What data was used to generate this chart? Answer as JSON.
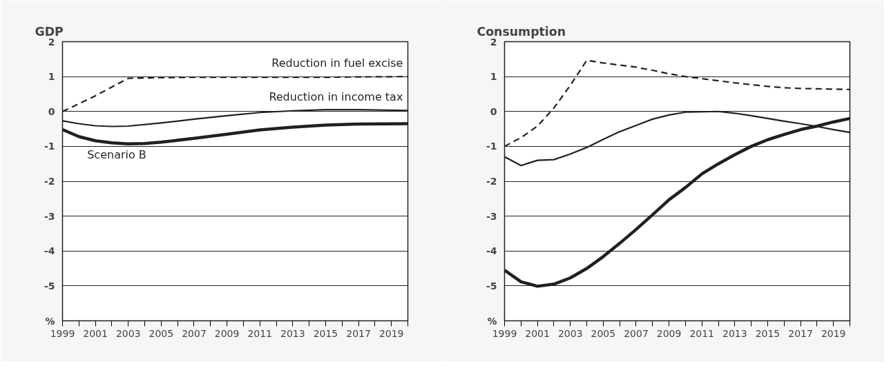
{
  "chart_data": [
    {
      "type": "line",
      "title": "GDP",
      "series": [
        {
          "name": "Reduction in fuel excise",
          "color": "#231f20",
          "line_style": "dashed",
          "x": [
            1999,
            2000,
            2001,
            2002,
            2003,
            2005,
            2007,
            2009,
            2011,
            2013,
            2015,
            2017,
            2020
          ],
          "values": [
            0,
            0.22,
            0.45,
            0.7,
            0.95,
            0.97,
            0.98,
            0.98,
            0.98,
            0.98,
            0.98,
            0.99,
            1.0
          ]
        },
        {
          "name": "Reduction in income tax",
          "color": "#231f20",
          "line_style": "solid",
          "x": [
            1999,
            2000,
            2001,
            2002,
            2003,
            2005,
            2007,
            2009,
            2011,
            2013,
            2015,
            2017,
            2020
          ],
          "values": [
            -0.27,
            -0.35,
            -0.41,
            -0.43,
            -0.42,
            -0.33,
            -0.22,
            -0.12,
            -0.03,
            0.02,
            0.05,
            0.05,
            0.03
          ]
        },
        {
          "name": "Scenario B",
          "color": "#231f20",
          "line_style": "solid",
          "x": [
            1999,
            2000,
            2001,
            2002,
            2003,
            2004,
            2005,
            2007,
            2009,
            2011,
            2013,
            2015,
            2017,
            2020
          ],
          "values": [
            -0.52,
            -0.72,
            -0.84,
            -0.9,
            -0.93,
            -0.92,
            -0.88,
            -0.77,
            -0.65,
            -0.53,
            -0.45,
            -0.39,
            -0.36,
            -0.35
          ]
        }
      ],
      "xlim": [
        1999,
        2020
      ],
      "ylim": [
        -6,
        2
      ],
      "xticks": [
        1999,
        {
          "value": 2000,
          "label": null
        },
        2001,
        {
          "value": 2002,
          "label": null
        },
        2003,
        {
          "value": 2004,
          "label": null
        },
        2005,
        {
          "value": 2006,
          "label": null
        },
        2007,
        {
          "value": 2008,
          "label": null
        },
        2009,
        {
          "value": 2010,
          "label": null
        },
        2011,
        {
          "value": 2012,
          "label": null
        },
        2013,
        {
          "value": 2014,
          "label": null
        },
        2015,
        {
          "value": 2016,
          "label": null
        },
        2017,
        {
          "value": 2018,
          "label": null
        },
        2019,
        {
          "value": 2020,
          "label": null
        }
      ],
      "yticks": [
        {
          "value": -6,
          "label": "%"
        },
        -5,
        -4,
        -3,
        -2,
        -1,
        0,
        1,
        2
      ],
      "grid": "y",
      "legend": false
    },
    {
      "type": "line",
      "title": "Consumption",
      "x": [
        1999,
        2000,
        2001,
        2002,
        2003,
        2004,
        2005,
        2006,
        2007,
        2008,
        2009,
        2010,
        2011,
        2012,
        2013,
        2014,
        2015,
        2016,
        2017,
        2018,
        2019,
        2020
      ],
      "series": [
        {
          "color": "#231f20",
          "line_style": "dashed",
          "values": [
            -1,
            -0.75,
            -0.42,
            0.1,
            0.75,
            1.47,
            1.39,
            1.33,
            1.27,
            1.18,
            1.08,
            1.0,
            0.94,
            0.88,
            0.82,
            0.77,
            0.72,
            0.68,
            0.66,
            0.65,
            0.64,
            0.63
          ]
        },
        {
          "color": "#231f20",
          "line_style": "solid",
          "values": [
            -1.3,
            -1.55,
            -1.4,
            -1.38,
            -1.22,
            -1.03,
            -0.8,
            -0.58,
            -0.4,
            -0.22,
            -0.1,
            -0.02,
            -0.01,
            0,
            -0.05,
            -0.12,
            -0.2,
            -0.28,
            -0.35,
            -0.43,
            -0.52,
            -0.6
          ]
        },
        {
          "color": "#231f20",
          "line_style": "solid",
          "values": [
            -4.55,
            -4.88,
            -5.01,
            -4.95,
            -4.77,
            -4.5,
            -4.16,
            -3.78,
            -3.38,
            -2.96,
            -2.53,
            -2.18,
            -1.79,
            -1.5,
            -1.24,
            -1.0,
            -0.81,
            -0.66,
            -0.52,
            -0.42,
            -0.3,
            -0.2
          ]
        }
      ],
      "xlim": [
        1999,
        2020
      ],
      "ylim": [
        -6,
        2
      ],
      "xticks": [
        1999,
        {
          "value": 2000,
          "label": null
        },
        2001,
        {
          "value": 2002,
          "label": null
        },
        2003,
        {
          "value": 2004,
          "label": null
        },
        2005,
        {
          "value": 2006,
          "label": null
        },
        2007,
        {
          "value": 2008,
          "label": null
        },
        2009,
        {
          "value": 2010,
          "label": null
        },
        2011,
        {
          "value": 2012,
          "label": null
        },
        2013,
        {
          "value": 2014,
          "label": null
        },
        2015,
        {
          "value": 2016,
          "label": null
        },
        2017,
        {
          "value": 2018,
          "label": null
        },
        2019,
        {
          "value": 2020,
          "label": null
        }
      ],
      "yticks": [
        {
          "value": -6,
          "label": "%"
        },
        -5,
        -4,
        -3,
        -2,
        -1,
        0,
        1,
        2
      ],
      "grid": "y",
      "legend": false
    }
  ]
}
